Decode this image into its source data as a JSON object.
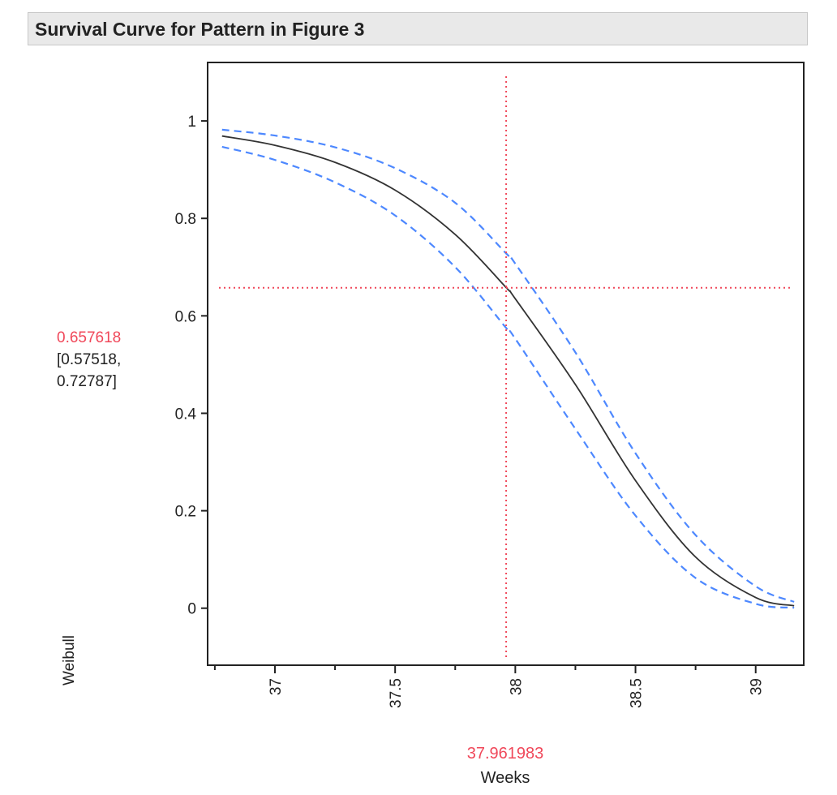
{
  "title": "Survival Curve for Pattern in Figure 3",
  "chart_data": {
    "type": "line",
    "title": "Survival Curve for Pattern in Figure 3",
    "xlabel": "Weeks",
    "ylabel": "Weibull",
    "xlim": [
      36.72,
      39.2
    ],
    "ylim": [
      -0.117,
      1.12
    ],
    "x_ticks": [
      "37",
      "37.5",
      "38",
      "38.5",
      "39"
    ],
    "x_tick_values": [
      37,
      37.5,
      38,
      38.5,
      39
    ],
    "x_minor_ticks": [
      36.75,
      37.25,
      37.75,
      38.25,
      38.75
    ],
    "y_ticks": [
      "0",
      "0.2",
      "0.4",
      "0.6",
      "0.8",
      "1"
    ],
    "y_tick_values": [
      0,
      0.2,
      0.4,
      0.6,
      0.8,
      1
    ],
    "grid": false,
    "x": [
      36.78,
      37.0,
      37.25,
      37.5,
      37.75,
      37.962,
      38.0,
      38.25,
      38.5,
      38.75,
      39.0,
      39.16
    ],
    "series": [
      {
        "style": "solid",
        "color": "#333333",
        "values": [
          0.969,
          0.95,
          0.915,
          0.858,
          0.767,
          0.658,
          0.635,
          0.459,
          0.262,
          0.105,
          0.022,
          0.005
        ]
      },
      {
        "style": "dashed",
        "color": "#4d88ff",
        "values": [
          0.982,
          0.97,
          0.946,
          0.903,
          0.832,
          0.728,
          0.707,
          0.525,
          0.318,
          0.15,
          0.045,
          0.013
        ]
      },
      {
        "style": "dashed",
        "color": "#4d88ff",
        "values": [
          0.947,
          0.92,
          0.874,
          0.806,
          0.7,
          0.575,
          0.553,
          0.368,
          0.19,
          0.062,
          0.009,
          0.001
        ]
      }
    ],
    "crosshair": {
      "x": 37.961983,
      "y": 0.657618,
      "color": "#f0485a"
    },
    "readout": {
      "x_value": "37.961983",
      "y_value": "0.657618",
      "y_ci_low": "[0.57518,",
      "y_ci_high": "0.72787]"
    }
  }
}
